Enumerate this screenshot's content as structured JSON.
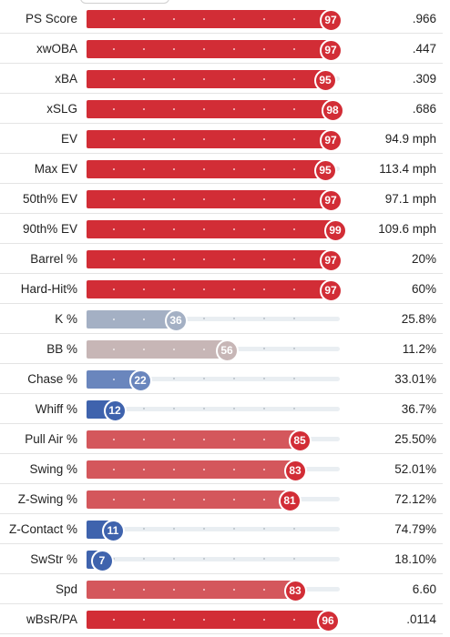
{
  "colors": {
    "elite": "#d22d36",
    "high": "#d4575c",
    "k_pct_fill": "#a4b0c4",
    "k_pct_badge": "#a4b0c4",
    "bb_pct_fill": "#c7b6b6",
    "bb_pct_badge": "#c7b6b6",
    "chase_fill": "#6a86bd",
    "chase_badge": "#6a86bd",
    "low_fill": "#3f63ad",
    "low_badge": "#3f63ad"
  },
  "rows": [
    {
      "label": "PS Score",
      "percentile": 97,
      "value": ".966",
      "fill": "elite",
      "badge": "elite"
    },
    {
      "label": "xwOBA",
      "percentile": 97,
      "value": ".447",
      "fill": "elite",
      "badge": "elite"
    },
    {
      "label": "xBA",
      "percentile": 95,
      "value": ".309",
      "fill": "elite",
      "badge": "elite"
    },
    {
      "label": "xSLG",
      "percentile": 98,
      "value": ".686",
      "fill": "elite",
      "badge": "elite"
    },
    {
      "label": "EV",
      "percentile": 97,
      "value": "94.9 mph",
      "fill": "elite",
      "badge": "elite"
    },
    {
      "label": "Max EV",
      "percentile": 95,
      "value": "113.4 mph",
      "fill": "elite",
      "badge": "elite"
    },
    {
      "label": "50th% EV",
      "percentile": 97,
      "value": "97.1 mph",
      "fill": "elite",
      "badge": "elite"
    },
    {
      "label": "90th% EV",
      "percentile": 99,
      "value": "109.6 mph",
      "fill": "elite",
      "badge": "elite"
    },
    {
      "label": "Barrel %",
      "percentile": 97,
      "value": "20%",
      "fill": "elite",
      "badge": "elite"
    },
    {
      "label": "Hard-Hit%",
      "percentile": 97,
      "value": "60%",
      "fill": "elite",
      "badge": "elite"
    },
    {
      "label": "K %",
      "percentile": 36,
      "value": "25.8%",
      "fill": "k_pct_fill",
      "badge": "k_pct_badge"
    },
    {
      "label": "BB %",
      "percentile": 56,
      "value": "11.2%",
      "fill": "bb_pct_fill",
      "badge": "bb_pct_badge"
    },
    {
      "label": "Chase %",
      "percentile": 22,
      "value": "33.01%",
      "fill": "chase_fill",
      "badge": "chase_badge"
    },
    {
      "label": "Whiff %",
      "percentile": 12,
      "value": "36.7%",
      "fill": "low_fill",
      "badge": "low_badge"
    },
    {
      "label": "Pull Air %",
      "percentile": 85,
      "value": "25.50%",
      "fill": "high",
      "badge": "elite"
    },
    {
      "label": "Swing %",
      "percentile": 83,
      "value": "52.01%",
      "fill": "high",
      "badge": "elite"
    },
    {
      "label": "Z-Swing %",
      "percentile": 81,
      "value": "72.12%",
      "fill": "high",
      "badge": "elite"
    },
    {
      "label": "Z-Contact %",
      "percentile": 11,
      "value": "74.79%",
      "fill": "low_fill",
      "badge": "low_badge"
    },
    {
      "label": "SwStr %",
      "percentile": 7,
      "value": "18.10%",
      "fill": "low_fill",
      "badge": "low_badge"
    },
    {
      "label": "Spd",
      "percentile": 83,
      "value": "6.60",
      "fill": "high",
      "badge": "elite"
    },
    {
      "label": "wBsR/PA",
      "percentile": 96,
      "value": ".0114",
      "fill": "elite",
      "badge": "elite"
    }
  ]
}
